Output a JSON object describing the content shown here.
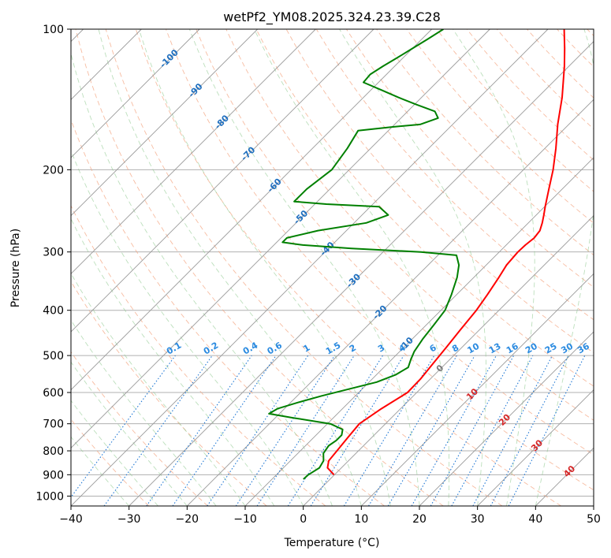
{
  "chart_data": {
    "type": "line",
    "title": "wetPf2_YM08.2025.324.23.39.C28",
    "xlabel": "Temperature (°C)",
    "ylabel": "Pressure (hPa)",
    "xlim": [
      -40,
      50
    ],
    "ylim": [
      1050,
      100
    ],
    "y_scale": "log",
    "grid": true,
    "x_ticks": [
      -40,
      -30,
      -20,
      -10,
      0,
      10,
      20,
      30,
      40,
      50
    ],
    "y_ticks": [
      100,
      200,
      300,
      400,
      500,
      600,
      700,
      800,
      900,
      1000
    ],
    "x_tick_labels": [
      "−40",
      "−30",
      "−20",
      "−10",
      "0",
      "10",
      "20",
      "30",
      "40",
      "50"
    ],
    "y_tick_labels": [
      "100",
      "200",
      "300",
      "400",
      "500",
      "600",
      "700",
      "800",
      "900",
      "1000"
    ],
    "isotherm_labels": [
      "-100",
      "-90",
      "-80",
      "-70",
      "-60",
      "-50",
      "-40",
      "-30",
      "-20",
      "-10",
      "0",
      "10",
      "20",
      "30",
      "40"
    ],
    "mixing_ratio_labels": [
      "0.1",
      "0.2",
      "0.4",
      "0.6",
      "1",
      "1.5",
      "2",
      "3",
      "4",
      "6",
      "8",
      "10",
      "13",
      "16",
      "20",
      "25",
      "30",
      "36"
    ],
    "series": [
      {
        "color": "#ff0000",
        "pressure": [
          900,
          870,
          840,
          800,
          750,
          700,
          650,
          600,
          560,
          520,
          480,
          440,
          400,
          370,
          340,
          320,
          300,
          290,
          280,
          270,
          260,
          250,
          240,
          220,
          200,
          180,
          160,
          140,
          120,
          110,
          100
        ],
        "values": [
          -0.1,
          -2.4,
          -3.4,
          -3.7,
          -4.1,
          -4.5,
          -3.3,
          -1.6,
          -1.7,
          -2.2,
          -2.7,
          -3.3,
          -3.9,
          -4.7,
          -5.7,
          -6.5,
          -6.8,
          -6.7,
          -6.4,
          -6.7,
          -7.6,
          -8.7,
          -9.9,
          -12.3,
          -14.9,
          -18.1,
          -21.9,
          -25.8,
          -30.8,
          -33.8,
          -37.2
        ]
      },
      {
        "color": "#008000",
        "pressure": [
          920,
          900,
          870,
          840,
          810,
          780,
          760,
          740,
          720,
          700,
          680,
          666,
          650,
          630,
          610,
          590,
          570,
          550,
          530,
          510,
          490,
          460,
          430,
          400,
          370,
          340,
          320,
          305,
          300,
          295,
          290,
          286,
          280,
          270,
          260,
          250,
          240,
          237,
          234,
          220,
          200,
          180,
          165,
          162,
          160,
          155,
          150,
          145,
          140,
          135,
          130,
          125,
          120,
          115,
          110,
          105,
          100
        ],
        "values": [
          -4.6,
          -4.5,
          -3.8,
          -4.3,
          -5.6,
          -6.0,
          -5.6,
          -5.6,
          -6.4,
          -9.5,
          -16.9,
          -21.8,
          -21.2,
          -18.7,
          -15.8,
          -12.3,
          -8.7,
          -6.7,
          -5.8,
          -6.7,
          -7.5,
          -8.2,
          -8.7,
          -9.3,
          -10.9,
          -12.9,
          -14.7,
          -16.8,
          -23.5,
          -36.0,
          -45.0,
          -49.0,
          -49.0,
          -44.9,
          -37.9,
          -35.5,
          -38.5,
          -48.0,
          -54.0,
          -54.0,
          -53.0,
          -54.0,
          -55.2,
          -50.0,
          -45.6,
          -43.6,
          -45.3,
          -49.7,
          -54.0,
          -58.2,
          -62.6,
          -62.8,
          -62.0,
          -61.0,
          -60.0,
          -59.0,
          -58.0
        ]
      }
    ]
  }
}
